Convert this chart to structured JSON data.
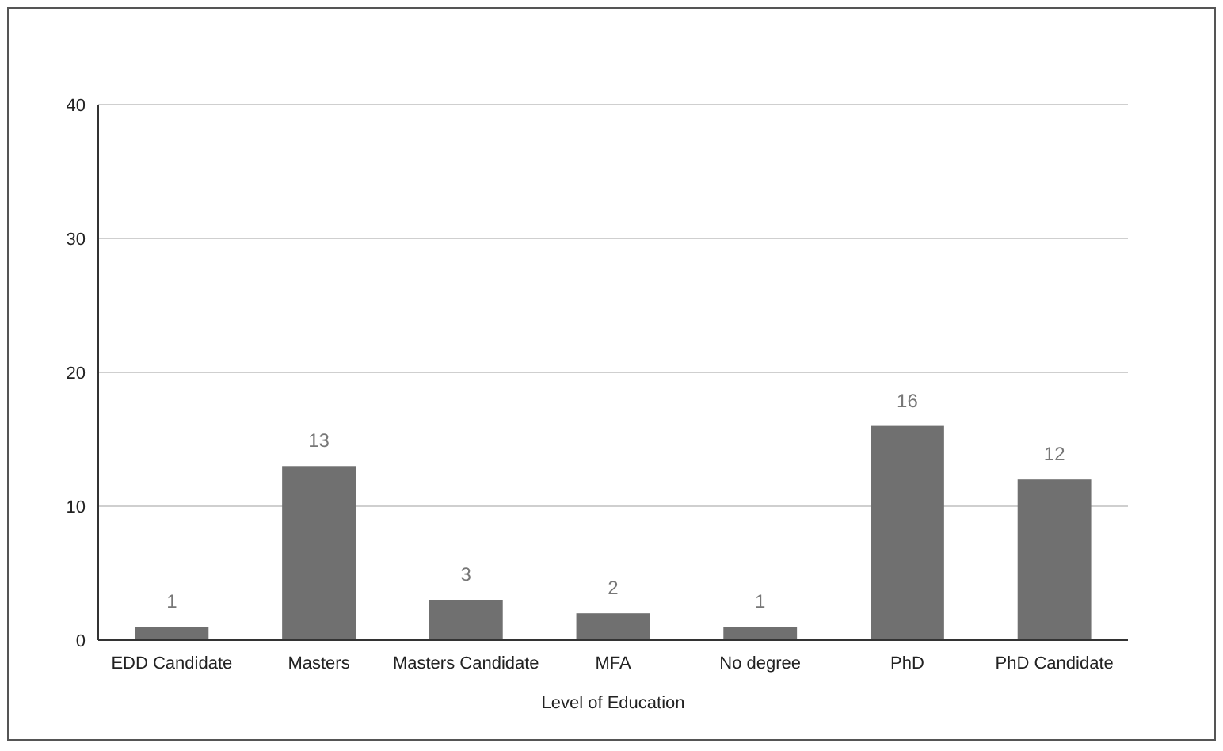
{
  "chart_data": {
    "type": "bar",
    "xlabel": "Level of Education",
    "categories": [
      "EDD Candidate",
      "Masters",
      "Masters Candidate",
      "MFA",
      "No degree",
      "PhD",
      "PhD Candidate"
    ],
    "values": [
      1,
      13,
      3,
      2,
      1,
      16,
      12
    ],
    "color": "#707070",
    "ylim": [
      0,
      40
    ],
    "yticks": [
      0,
      10,
      20,
      30,
      40
    ],
    "grid": "y",
    "data_labels": true
  }
}
